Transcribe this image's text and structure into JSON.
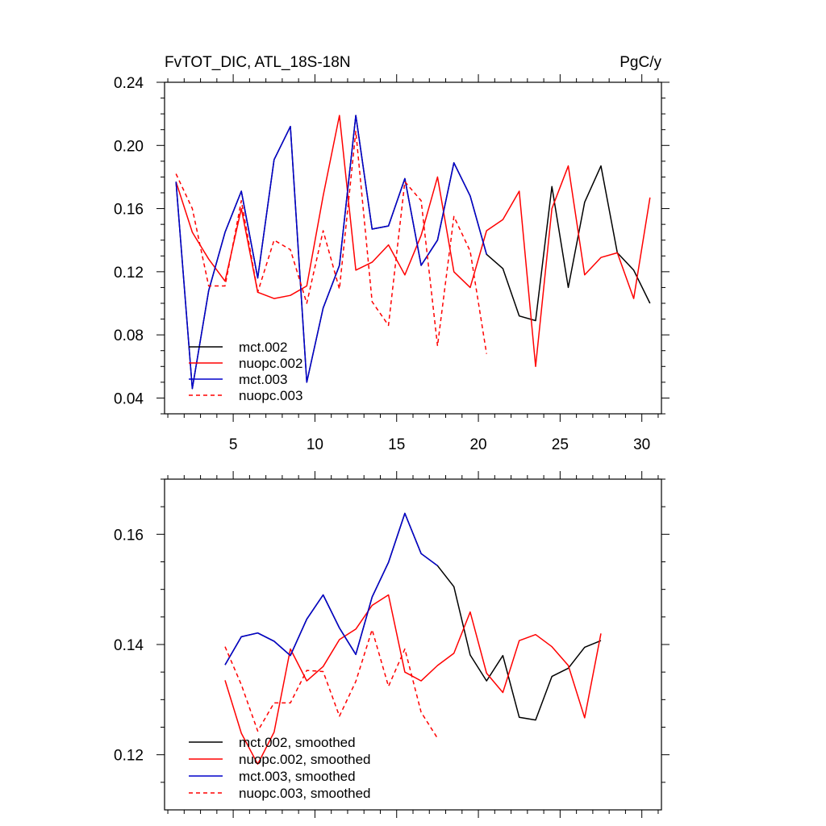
{
  "chart_data": [
    {
      "type": "line",
      "title": "FvTOT_DIC, ATL_18S-18N",
      "units": "PgC/y",
      "xlim": [
        0.8,
        31.2
      ],
      "ylim": [
        0.03,
        0.24
      ],
      "x_ticks": [
        5,
        10,
        15,
        20,
        25,
        30
      ],
      "x_tick_labels": [
        "5",
        "10",
        "15",
        "20",
        "25",
        "30"
      ],
      "y_ticks": [
        0.04,
        0.08,
        0.12,
        0.16,
        0.2,
        0.24
      ],
      "y_tick_labels": [
        "0.04",
        "0.08",
        "0.12",
        "0.16",
        "0.20",
        "0.24"
      ],
      "legend_position": "bottom-left",
      "grid": false,
      "series": [
        {
          "name": "mct.002",
          "color": "#000000",
          "dash": "solid",
          "x": [
            1.5,
            2.5,
            3.5,
            4.5,
            5.5,
            6.5,
            7.5,
            8.5,
            9.5,
            10.5,
            11.5,
            12.5,
            13.5,
            14.5,
            15.5,
            16.5,
            17.5,
            18.5,
            19.5,
            20.5,
            21.5,
            22.5,
            23.5,
            24.5,
            25.5,
            26.5,
            27.5,
            28.5,
            29.5,
            30.5
          ],
          "values": [
            0.177,
            0.046,
            0.108,
            0.145,
            0.171,
            0.116,
            0.191,
            0.212,
            0.05,
            0.097,
            0.124,
            0.219,
            0.147,
            0.149,
            0.179,
            0.124,
            0.14,
            0.189,
            0.168,
            0.131,
            0.122,
            0.092,
            0.089,
            0.174,
            0.11,
            0.164,
            0.187,
            0.132,
            0.121,
            0.1
          ]
        },
        {
          "name": "nuopc.002",
          "color": "#ff0000",
          "dash": "solid",
          "x": [
            1.5,
            2.5,
            3.5,
            4.5,
            5.5,
            6.5,
            7.5,
            8.5,
            9.5,
            10.5,
            11.5,
            12.5,
            13.5,
            14.5,
            15.5,
            16.5,
            17.5,
            18.5,
            19.5,
            20.5,
            21.5,
            22.5,
            23.5,
            24.5,
            25.5,
            26.5,
            27.5,
            28.5,
            29.5,
            30.5
          ],
          "values": [
            0.177,
            0.145,
            0.128,
            0.114,
            0.16,
            0.107,
            0.103,
            0.105,
            0.111,
            0.168,
            0.219,
            0.121,
            0.126,
            0.137,
            0.118,
            0.143,
            0.18,
            0.12,
            0.11,
            0.146,
            0.153,
            0.171,
            0.06,
            0.16,
            0.187,
            0.118,
            0.129,
            0.132,
            0.103,
            0.167
          ]
        },
        {
          "name": "mct.003",
          "color": "#0000cc",
          "dash": "solid",
          "x": [
            1.5,
            2.5,
            3.5,
            4.5,
            5.5,
            6.5,
            7.5,
            8.5,
            9.5,
            10.5,
            11.5,
            12.5,
            13.5,
            14.5,
            15.5,
            16.5,
            17.5,
            18.5,
            19.5,
            20.5
          ],
          "values": [
            0.177,
            0.046,
            0.108,
            0.145,
            0.171,
            0.116,
            0.191,
            0.212,
            0.05,
            0.097,
            0.124,
            0.219,
            0.147,
            0.149,
            0.179,
            0.124,
            0.14,
            0.189,
            0.168,
            0.131
          ]
        },
        {
          "name": "nuopc.003",
          "color": "#ff0000",
          "dash": "dashed",
          "x": [
            1.5,
            2.5,
            3.5,
            4.5,
            5.5,
            6.5,
            7.5,
            8.5,
            9.5,
            10.5,
            11.5,
            12.5,
            13.5,
            14.5,
            15.5,
            16.5,
            17.5,
            18.5,
            19.5,
            20.5
          ],
          "values": [
            0.182,
            0.16,
            0.111,
            0.111,
            0.165,
            0.107,
            0.14,
            0.134,
            0.1,
            0.146,
            0.109,
            0.209,
            0.101,
            0.086,
            0.177,
            0.165,
            0.073,
            0.155,
            0.133,
            0.068
          ]
        }
      ]
    },
    {
      "type": "line",
      "title": "",
      "xlim": [
        0.8,
        31.2
      ],
      "ylim": [
        0.11,
        0.17
      ],
      "x_ticks": [
        5,
        10,
        15,
        20,
        25,
        30
      ],
      "x_tick_labels": [],
      "y_ticks": [
        0.12,
        0.14,
        0.16
      ],
      "y_tick_labels": [
        "0.12",
        "0.14",
        "0.16"
      ],
      "legend_position": "bottom-left",
      "grid": false,
      "series": [
        {
          "name": "mct.002, smoothed",
          "color": "#000000",
          "dash": "solid",
          "x": [
            4.5,
            5.5,
            6.5,
            7.5,
            8.5,
            9.5,
            10.5,
            11.5,
            12.5,
            13.5,
            14.5,
            15.5,
            16.5,
            17.5,
            18.5,
            19.5,
            20.5,
            21.5,
            22.5,
            23.5,
            24.5,
            25.5,
            26.5,
            27.5
          ],
          "values": [
            0.1363,
            0.1414,
            0.1421,
            0.1406,
            0.138,
            0.1446,
            0.149,
            0.143,
            0.1382,
            0.1486,
            0.1549,
            0.1638,
            0.1565,
            0.1543,
            0.1505,
            0.1381,
            0.1334,
            0.138,
            0.1268,
            0.1263,
            0.1342,
            0.1357,
            0.1395,
            0.1407
          ]
        },
        {
          "name": "nuopc.002, smoothed",
          "color": "#ff0000",
          "dash": "solid",
          "x": [
            4.5,
            5.5,
            6.5,
            7.5,
            8.5,
            9.5,
            10.5,
            11.5,
            12.5,
            13.5,
            14.5,
            15.5,
            16.5,
            17.5,
            18.5,
            19.5,
            20.5,
            21.5,
            22.5,
            23.5,
            24.5,
            25.5,
            26.5,
            27.5
          ],
          "values": [
            0.1335,
            0.1239,
            0.1183,
            0.1241,
            0.1392,
            0.1334,
            0.136,
            0.1409,
            0.1428,
            0.1471,
            0.149,
            0.135,
            0.1334,
            0.1362,
            0.1384,
            0.1459,
            0.1348,
            0.1313,
            0.1407,
            0.1418,
            0.1396,
            0.1362,
            0.1267,
            0.142
          ]
        },
        {
          "name": "mct.003, smoothed",
          "color": "#0000cc",
          "dash": "solid",
          "x": [
            4.5,
            5.5,
            6.5,
            7.5,
            8.5,
            9.5,
            10.5,
            11.5,
            12.5,
            13.5,
            14.5,
            15.5,
            16.5,
            17.5
          ],
          "values": [
            0.1363,
            0.1414,
            0.1421,
            0.1406,
            0.138,
            0.1446,
            0.149,
            0.143,
            0.1382,
            0.1486,
            0.1549,
            0.1638,
            0.1565,
            0.1543
          ]
        },
        {
          "name": "nuopc.003, smoothed",
          "color": "#ff0000",
          "dash": "dashed",
          "x": [
            4.5,
            5.5,
            6.5,
            7.5,
            8.5,
            9.5,
            10.5,
            11.5,
            12.5,
            13.5,
            14.5,
            15.5,
            16.5,
            17.5
          ],
          "values": [
            0.1396,
            0.1327,
            0.1243,
            0.1294,
            0.1294,
            0.1353,
            0.1351,
            0.127,
            0.1333,
            0.1427,
            0.1324,
            0.1392,
            0.1277,
            0.123
          ]
        }
      ]
    }
  ]
}
